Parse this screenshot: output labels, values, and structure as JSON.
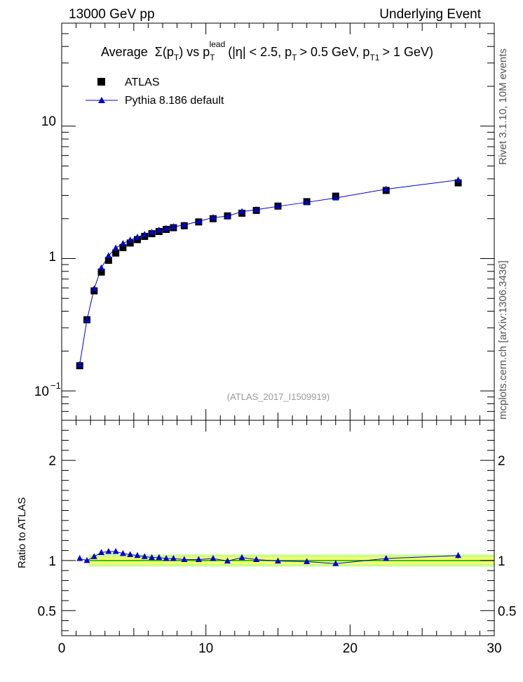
{
  "header": {
    "left": "13000 GeV pp",
    "right": "Underlying Event",
    "side_top": "Rivet 3.1.10, 10M events",
    "side_bottom": "mcplots.cern.ch [arXiv:1306.3436]"
  },
  "chart_data": [
    {
      "type": "scatter",
      "panel": "main",
      "title_parts": {
        "average": "Average",
        "sigma": "Σ(p",
        "t_sub": "T",
        "vs": ") vs p",
        "lead_sup": "lead",
        "rest1": "(|η| < 2.5, p",
        "rest2": "> 0.5 GeV, p",
        "t1_sub": "T1",
        "rest3": "> 1 GeV)"
      },
      "annotation": "(ATLAS_2017_I1509919)",
      "y_scale": "log",
      "xlim": [
        0,
        30
      ],
      "ylim": [
        0.06,
        60
      ],
      "x_ticks": [
        0,
        10,
        20,
        30
      ],
      "y_tick_labels": {
        "major_10": "10",
        "major_1": "1",
        "major_01_base": "10",
        "major_01_exp": "−1"
      },
      "legend": {
        "placement": "top-left"
      },
      "series": [
        {
          "name": "ATLAS",
          "marker": "square",
          "color": "#000000",
          "x": [
            1.25,
            1.75,
            2.25,
            2.75,
            3.25,
            3.75,
            4.25,
            4.75,
            5.25,
            5.75,
            6.25,
            6.75,
            7.25,
            7.75,
            8.5,
            9.5,
            10.5,
            11.5,
            12.5,
            13.5,
            15,
            17,
            19,
            22.5,
            27.5
          ],
          "y": [
            0.155,
            0.345,
            0.57,
            0.79,
            0.97,
            1.1,
            1.21,
            1.31,
            1.39,
            1.47,
            1.54,
            1.6,
            1.66,
            1.71,
            1.77,
            1.89,
            2.0,
            2.1,
            2.2,
            2.31,
            2.49,
            2.69,
            2.96,
            3.27,
            3.73
          ]
        },
        {
          "name": "Pythia 8.186 default",
          "marker": "triangle",
          "color": "#0000cc",
          "x": [
            1.25,
            1.75,
            2.25,
            2.75,
            3.25,
            3.75,
            4.25,
            4.75,
            5.25,
            5.75,
            6.25,
            6.75,
            7.25,
            7.75,
            8.5,
            9.5,
            10.5,
            11.5,
            12.5,
            13.5,
            15,
            17,
            19,
            22.5,
            27.5
          ],
          "y": [
            0.158,
            0.344,
            0.59,
            0.85,
            1.05,
            1.2,
            1.3,
            1.38,
            1.45,
            1.52,
            1.58,
            1.64,
            1.69,
            1.74,
            1.79,
            1.91,
            2.04,
            2.09,
            2.26,
            2.34,
            2.48,
            2.66,
            2.87,
            3.34,
            3.92
          ]
        }
      ]
    },
    {
      "type": "scatter",
      "panel": "ratio",
      "ylabel": "Ratio to ATLAS",
      "xlim": [
        0,
        30
      ],
      "ylim": [
        0.25,
        2.4
      ],
      "y_ticks": [
        0.5,
        1,
        2
      ],
      "y_tick_labels": [
        "0.5",
        "1",
        "2"
      ],
      "x_ticks": [
        0,
        10,
        20,
        30
      ],
      "x_tick_labels": [
        "0",
        "10",
        "20",
        "30"
      ],
      "band_color_inner": "#f4ff6c",
      "band_color_outer": "#c8ff8c",
      "reference_line_color": "#00aa00",
      "series": [
        {
          "name": "Pythia 8.186 default",
          "marker": "triangle",
          "color": "#0000cc",
          "x": [
            1.25,
            1.75,
            2.25,
            2.75,
            3.25,
            3.75,
            4.25,
            4.75,
            5.25,
            5.75,
            6.25,
            6.75,
            7.25,
            7.75,
            8.5,
            9.5,
            10.5,
            11.5,
            12.5,
            13.5,
            15,
            17,
            19,
            22.5,
            27.5
          ],
          "y": [
            1.02,
            1.0,
            1.04,
            1.08,
            1.09,
            1.09,
            1.07,
            1.06,
            1.05,
            1.04,
            1.03,
            1.03,
            1.02,
            1.02,
            1.01,
            1.01,
            1.02,
            0.995,
            1.03,
            1.01,
            0.995,
            0.99,
            0.97,
            1.02,
            1.05
          ],
          "err": [
            0.02,
            0.01,
            0.01,
            0.01,
            0.01,
            0.01,
            0.01,
            0.01,
            0.01,
            0.01,
            0.01,
            0.01,
            0.01,
            0.01,
            0.01,
            0.01,
            0.01,
            0.01,
            0.01,
            0.01,
            0.01,
            0.01,
            0.01,
            0.01,
            0.03
          ]
        }
      ]
    }
  ]
}
